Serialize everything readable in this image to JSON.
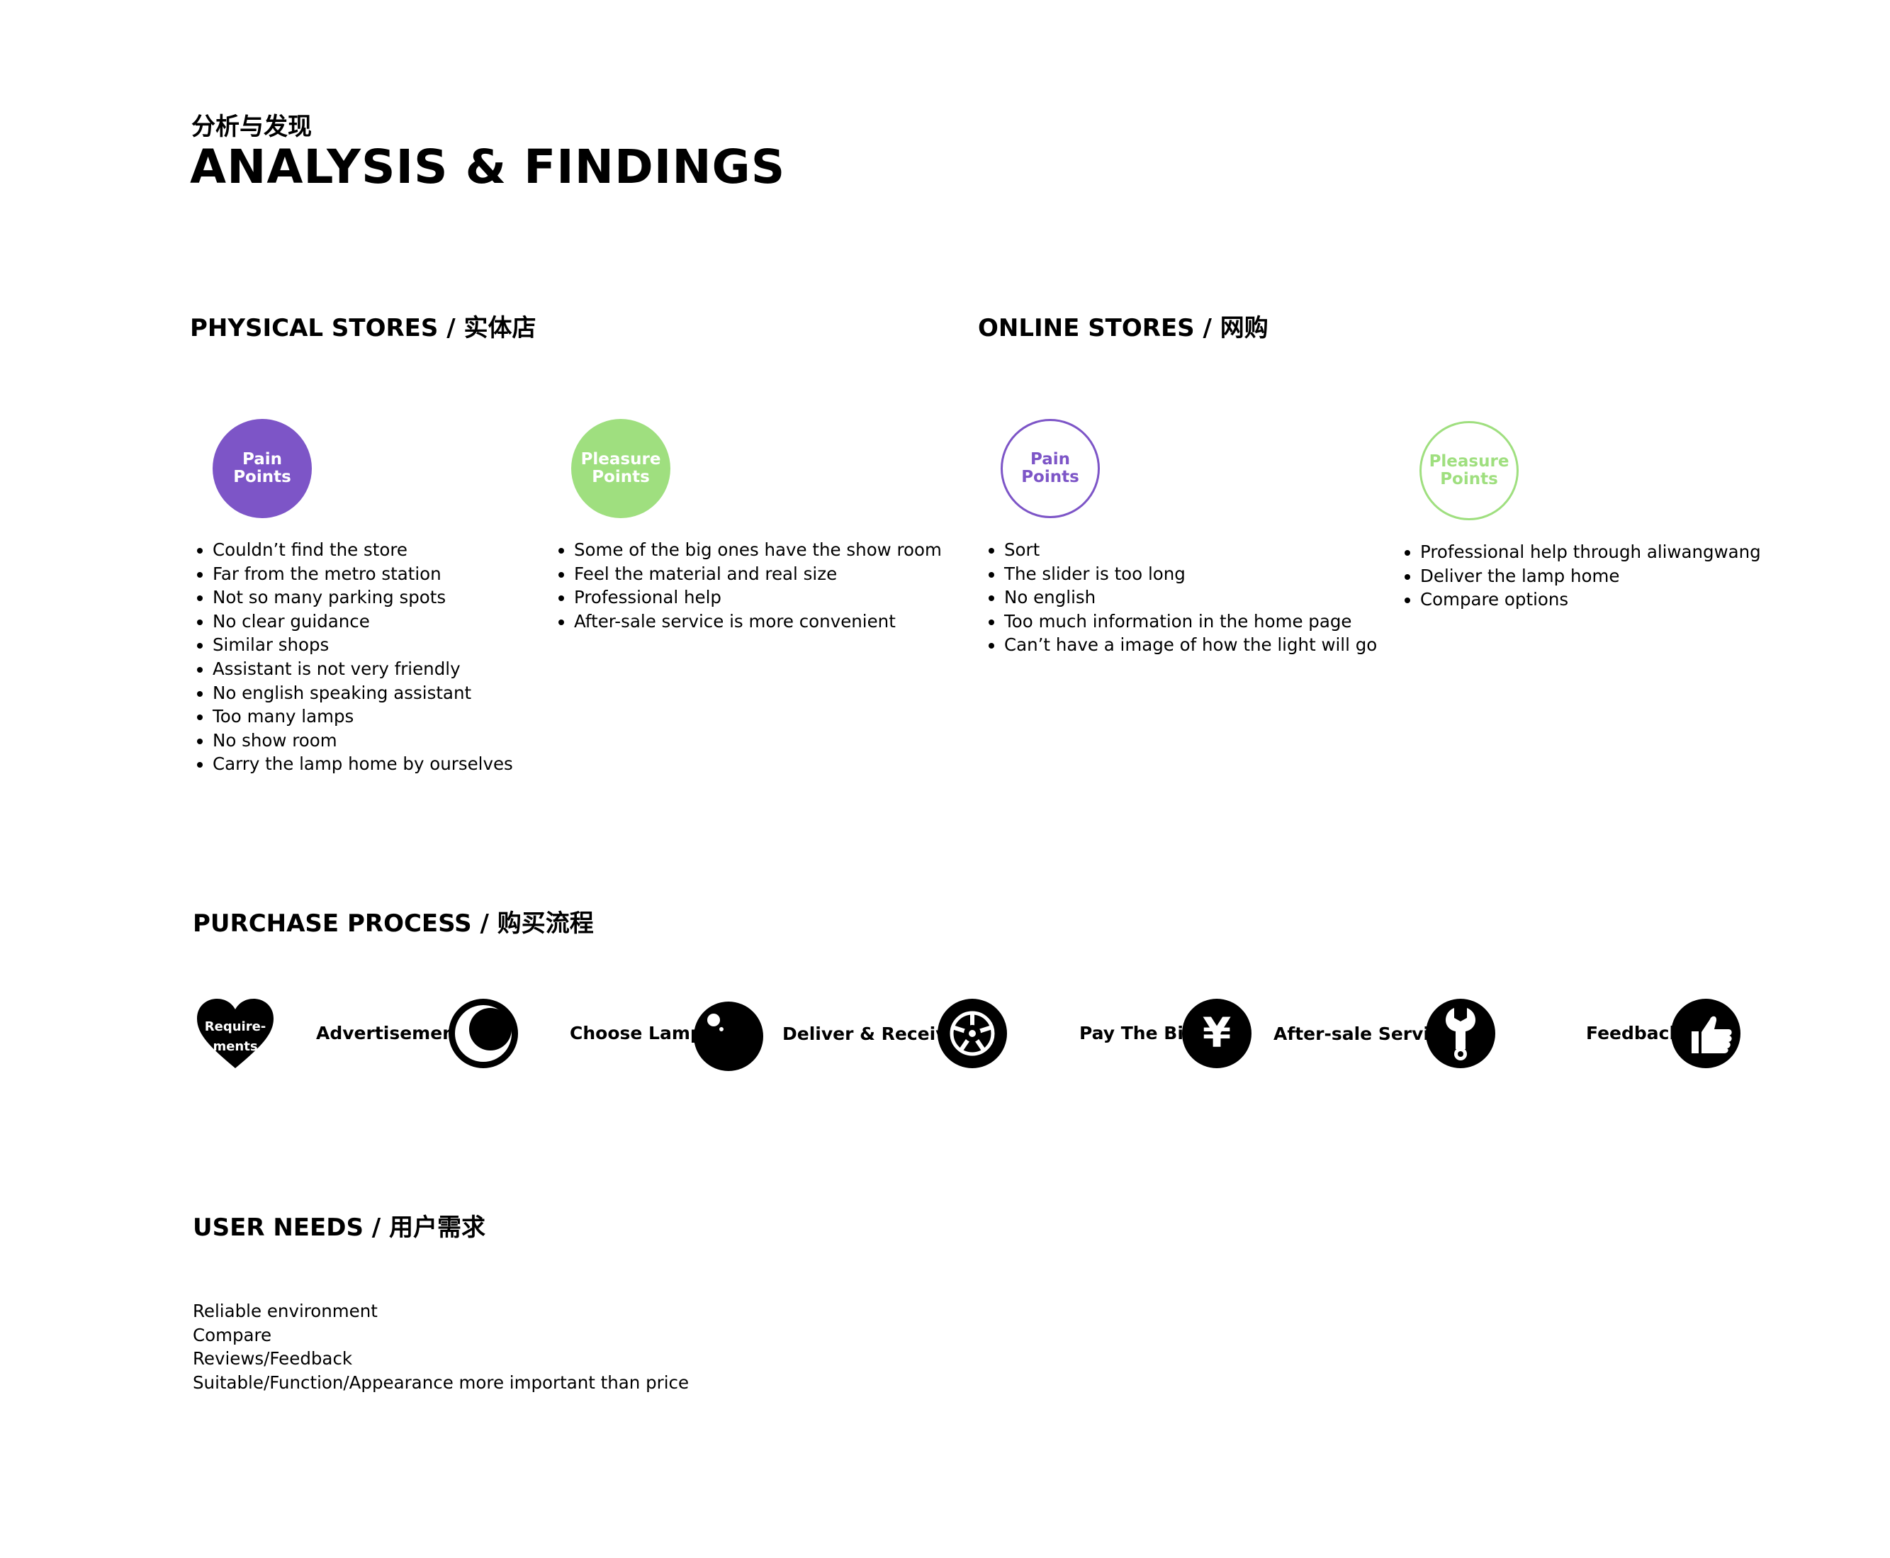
{
  "header": {
    "subtitle_cn": "分析与发现",
    "title": "ANALYSIS & FINDINGS"
  },
  "physical": {
    "title": "PHYSICAL STORES / 实体店",
    "pain": {
      "line1": "Pain",
      "line2": "Points",
      "items": [
        "Couldn’t find the store",
        "Far from the metro station",
        "Not so many parking spots",
        "No clear guidance",
        "Similar shops",
        "Assistant is not very friendly",
        "No english speaking assistant",
        "Too many lamps",
        "No show room",
        "Carry the lamp home by ourselves"
      ]
    },
    "pleasure": {
      "line1": "Pleasure",
      "line2": "Points",
      "items": [
        "Some of the big ones have the show room",
        "Feel the material and real size",
        "Professional help",
        "After-sale service is more convenient"
      ]
    }
  },
  "online": {
    "title": "ONLINE STORES / 网购",
    "pain": {
      "line1": "Pain",
      "line2": "Points",
      "items": [
        "Sort",
        "The slider is too long",
        "No english",
        "Too much information in the home page",
        "Can’t have a image of how the light will go"
      ]
    },
    "pleasure": {
      "line1": "Pleasure",
      "line2": "Points",
      "items": [
        "Professional help through aliwangwang",
        "Deliver the lamp home",
        "Compare options"
      ]
    }
  },
  "process": {
    "title": "PURCHASE PROCESS / 购买流程",
    "start_line1": "Require-",
    "start_line2": "ments",
    "steps": [
      {
        "label": "Advertisement",
        "icon": "crescent-moon-icon"
      },
      {
        "label": "Choose Lamp",
        "icon": "bulb-icon"
      },
      {
        "label": "Deliver & Receive",
        "icon": "wheel-icon"
      },
      {
        "label": "Pay The Bill",
        "icon": "yuan-icon",
        "glyph": "¥"
      },
      {
        "label": "After-sale Service",
        "icon": "wrench-icon"
      },
      {
        "label": "Feedback",
        "icon": "thumbs-up-icon"
      }
    ]
  },
  "needs": {
    "title": "USER NEEDS / 用户需求",
    "items": [
      "Reliable environment",
      "Compare",
      "Reviews/Feedback",
      "Suitable/Function/Appearance more important than price"
    ]
  },
  "colors": {
    "purple": "#7d55c7",
    "green": "#9fdf7f",
    "black": "#000000"
  }
}
